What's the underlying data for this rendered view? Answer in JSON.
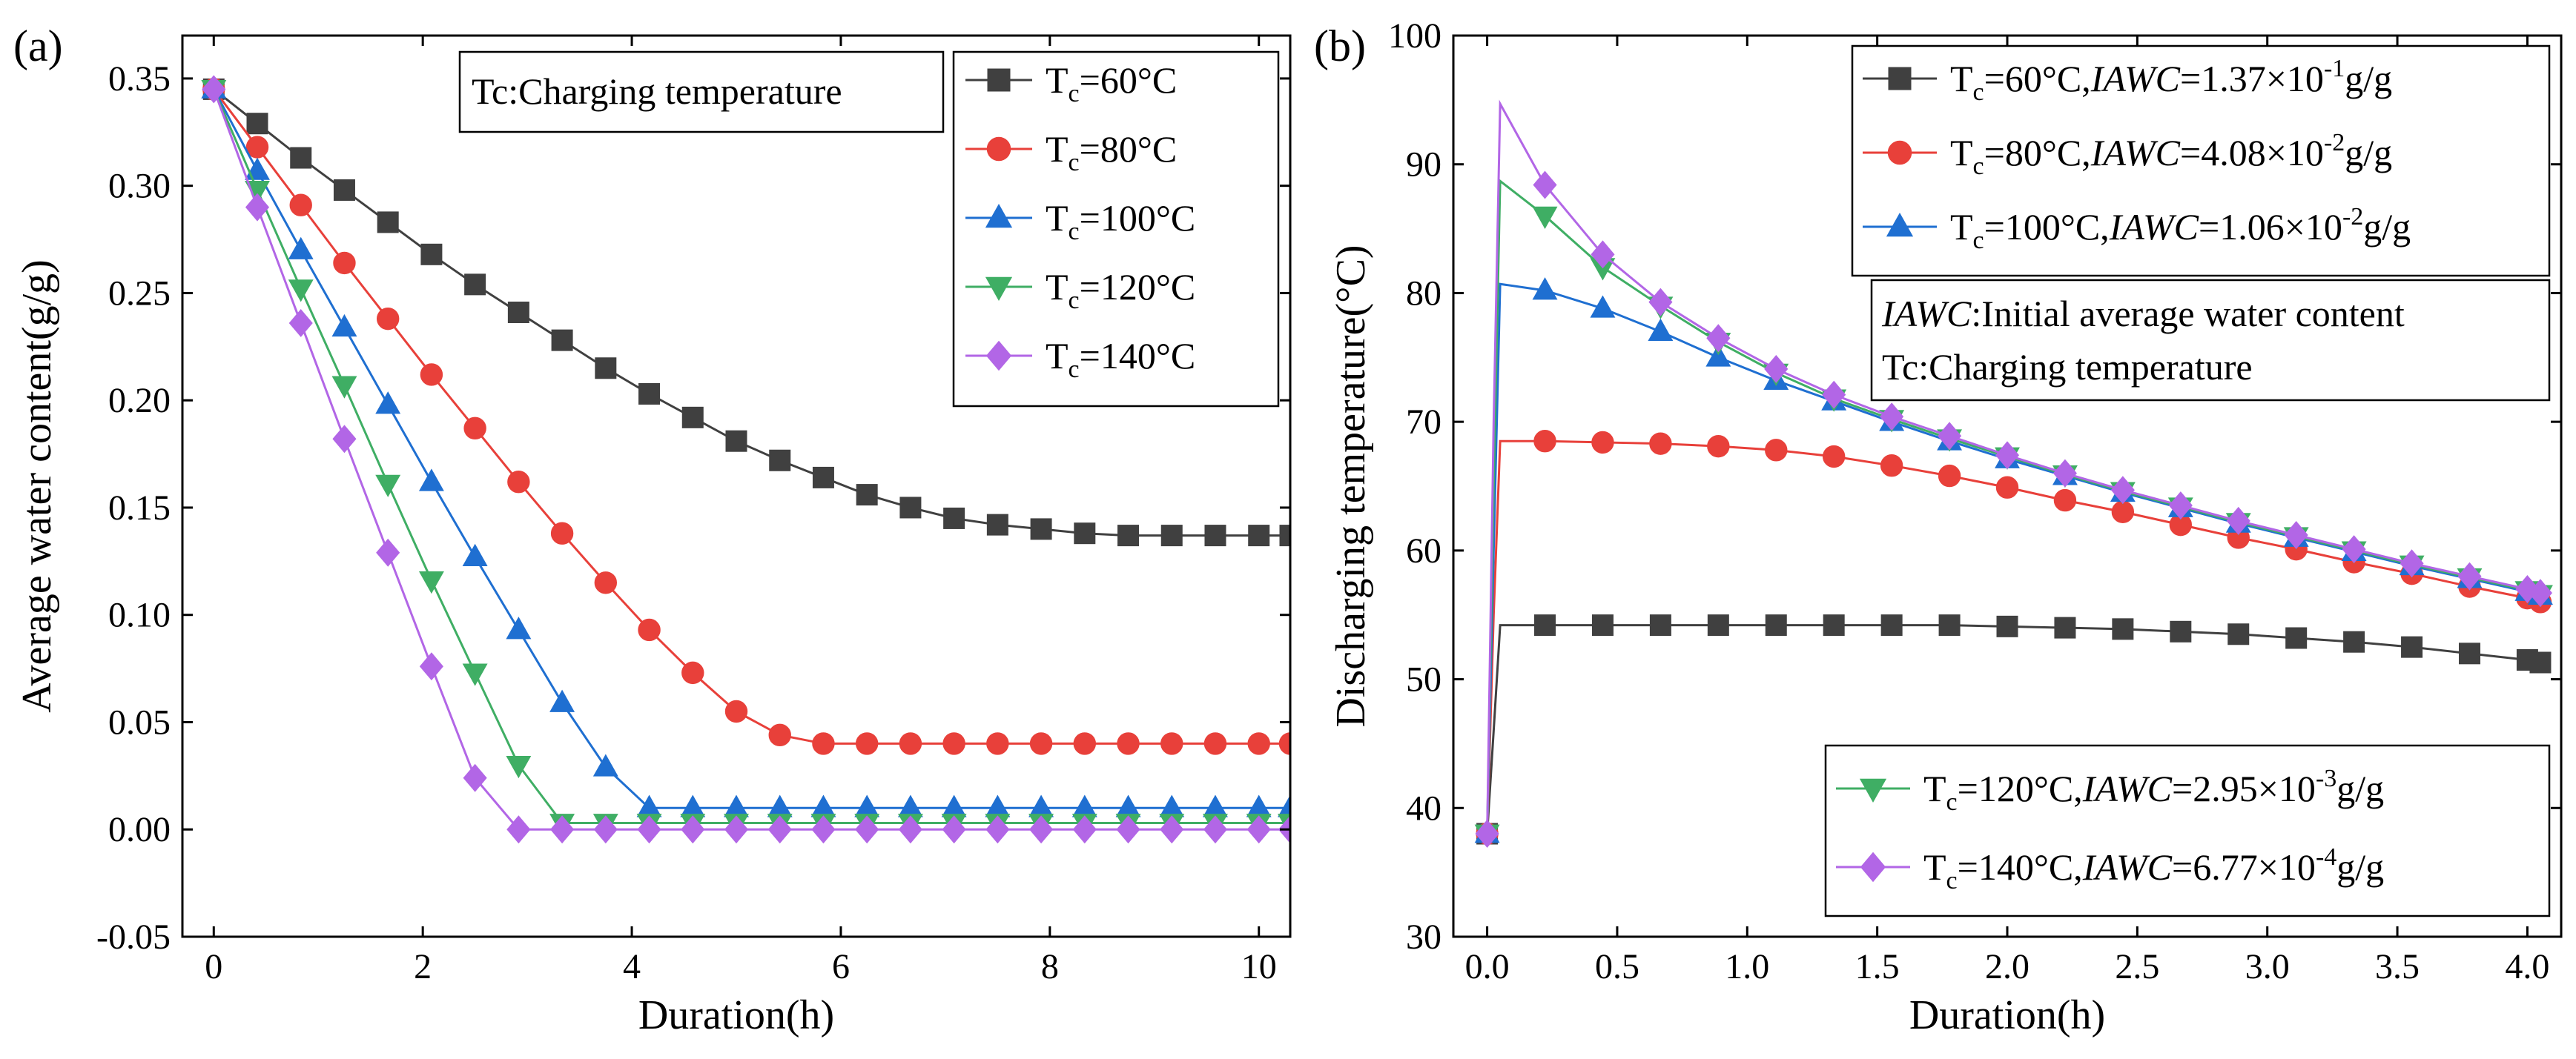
{
  "figure": {
    "panel_a": "(a)",
    "panel_b": "(b)"
  },
  "chart_data": [
    {
      "id": "a",
      "type": "line",
      "panel_label": "(a)",
      "xlabel": "Duration(h)",
      "ylabel": "Average water content(g/g)",
      "xlim": [
        -0.3,
        10.3
      ],
      "ylim": [
        -0.05,
        0.37
      ],
      "xticks": [
        0,
        2,
        4,
        6,
        8,
        10
      ],
      "xtick_labels": [
        "0",
        "2",
        "4",
        "6",
        "8",
        "10"
      ],
      "yticks": [
        -0.05,
        0,
        0.05,
        0.1,
        0.15,
        0.2,
        0.25,
        0.3,
        0.35
      ],
      "ytick_labels": [
        "-0.05",
        "0.00",
        "0.05",
        "0.10",
        "0.15",
        "0.20",
        "0.25",
        "0.30",
        "0.35"
      ],
      "note": "Tc:Charging temperature",
      "series": [
        {
          "name": "Tc=60°C",
          "label_main": "T",
          "label_sub": "c",
          "label_rest": "=60°C",
          "color": "#404040",
          "marker": "square",
          "x": [
            0,
            0.4167,
            0.8333,
            1.25,
            1.6667,
            2.0833,
            2.5,
            2.9167,
            3.3333,
            3.75,
            4.1667,
            4.5833,
            5,
            5.4167,
            5.8333,
            6.25,
            6.6667,
            7.0833,
            7.5,
            7.9167,
            8.3333,
            8.75,
            9.1667,
            9.5833,
            10,
            10.3
          ],
          "y": [
            0.345,
            0.329,
            0.313,
            0.298,
            0.283,
            0.268,
            0.254,
            0.241,
            0.228,
            0.215,
            0.203,
            0.192,
            0.181,
            0.172,
            0.164,
            0.156,
            0.15,
            0.145,
            0.142,
            0.14,
            0.138,
            0.137,
            0.137,
            0.137,
            0.137,
            0.137
          ]
        },
        {
          "name": "Tc=80°C",
          "label_main": "T",
          "label_sub": "c",
          "label_rest": "=80°C",
          "color": "#e8403a",
          "marker": "circle",
          "x": [
            0,
            0.4167,
            0.8333,
            1.25,
            1.6667,
            2.0833,
            2.5,
            2.9167,
            3.3333,
            3.75,
            4.1667,
            4.5833,
            5,
            5.4167,
            5.8333,
            6.25,
            6.6667,
            7.0833,
            7.5,
            7.9167,
            8.3333,
            8.75,
            9.1667,
            9.5833,
            10,
            10.3
          ],
          "y": [
            0.345,
            0.318,
            0.291,
            0.264,
            0.238,
            0.212,
            0.187,
            0.162,
            0.138,
            0.115,
            0.093,
            0.073,
            0.055,
            0.044,
            0.04,
            0.04,
            0.04,
            0.04,
            0.04,
            0.04,
            0.04,
            0.04,
            0.04,
            0.04,
            0.04,
            0.04
          ]
        },
        {
          "name": "Tc=100°C",
          "label_main": "T",
          "label_sub": "c",
          "label_rest": "=100°C",
          "color": "#1f6fd1",
          "marker": "triangle-up",
          "x": [
            0,
            0.4167,
            0.8333,
            1.25,
            1.6667,
            2.0833,
            2.5,
            2.9167,
            3.3333,
            3.75,
            4.1667,
            4.5833,
            5,
            5.4167,
            5.8333,
            6.25,
            6.6667,
            7.0833,
            7.5,
            7.9167,
            8.3333,
            8.75,
            9.1667,
            9.5833,
            10,
            10.3
          ],
          "y": [
            0.345,
            0.307,
            0.27,
            0.234,
            0.198,
            0.162,
            0.127,
            0.093,
            0.059,
            0.029,
            0.01,
            0.01,
            0.01,
            0.01,
            0.01,
            0.01,
            0.01,
            0.01,
            0.01,
            0.01,
            0.01,
            0.01,
            0.01,
            0.01,
            0.01,
            0.01
          ]
        },
        {
          "name": "Tc=120°C",
          "label_main": "T",
          "label_sub": "c",
          "label_rest": "=120°C",
          "color": "#3fae64",
          "marker": "triangle-down",
          "x": [
            0,
            0.4167,
            0.8333,
            1.25,
            1.6667,
            2.0833,
            2.5,
            2.9167,
            3.3333,
            3.75,
            4.1667,
            4.5833,
            5,
            5.4167,
            5.8333,
            6.25,
            6.6667,
            7.0833,
            7.5,
            7.9167,
            8.3333,
            8.75,
            9.1667,
            9.5833,
            10,
            10.3
          ],
          "y": [
            0.345,
            0.298,
            0.252,
            0.207,
            0.161,
            0.116,
            0.073,
            0.03,
            0.003,
            0.003,
            0.003,
            0.003,
            0.003,
            0.003,
            0.003,
            0.003,
            0.003,
            0.003,
            0.003,
            0.003,
            0.003,
            0.003,
            0.003,
            0.003,
            0.003,
            0.003
          ]
        },
        {
          "name": "Tc=140°C",
          "label_main": "T",
          "label_sub": "c",
          "label_rest": "=140°C",
          "color": "#b266e6",
          "marker": "diamond",
          "x": [
            0,
            0.4167,
            0.8333,
            1.25,
            1.6667,
            2.0833,
            2.5,
            2.9167,
            3.3333,
            3.75,
            4.1667,
            4.5833,
            5,
            5.4167,
            5.8333,
            6.25,
            6.6667,
            7.0833,
            7.5,
            7.9167,
            8.3333,
            8.75,
            9.1667,
            9.5833,
            10,
            10.3
          ],
          "y": [
            0.345,
            0.29,
            0.236,
            0.182,
            0.129,
            0.076,
            0.024,
            0.0,
            0.0,
            0.0,
            0.0,
            0.0,
            0.0,
            0.0,
            0.0,
            0.0,
            0.0,
            0.0,
            0.0,
            0.0,
            0.0,
            0.0,
            0.0,
            0.0,
            0.0,
            0.0
          ]
        }
      ]
    },
    {
      "id": "b",
      "type": "line",
      "panel_label": "(b)",
      "xlabel": "Duration(h)",
      "ylabel": "Discharging temperature(°C)",
      "xlim": [
        -0.13,
        4.13
      ],
      "ylim": [
        30,
        100
      ],
      "xticks": [
        0,
        0.5,
        1,
        1.5,
        2,
        2.5,
        3,
        3.5,
        4
      ],
      "xtick_labels": [
        "0.0",
        "0.5",
        "1.0",
        "1.5",
        "2.0",
        "2.5",
        "3.0",
        "3.5",
        "4.0"
      ],
      "yticks": [
        30,
        40,
        50,
        60,
        70,
        80,
        90,
        100
      ],
      "ytick_labels": [
        "30",
        "40",
        "50",
        "60",
        "70",
        "80",
        "90",
        "100"
      ],
      "note_line1_italic": "IAWC",
      "note_line1_rest": ":Initial average water content",
      "note_line2": "Tc:Charging temperature",
      "series": [
        {
          "name": "Tc=60°C,IAWC=1.37×10-1g/g",
          "t": "T",
          "c": "c",
          "eq": "=60°C,",
          "iawc": "IAWC",
          "val": "=1.37×10",
          "exp": "-1",
          "unit": "g/g",
          "color": "#404040",
          "marker": "square",
          "x": [
            0,
            0.025,
            0.05,
            0.2222,
            0.4444,
            0.6667,
            0.8889,
            1.1111,
            1.3333,
            1.5556,
            1.7778,
            2.0,
            2.2222,
            2.4444,
            2.6667,
            2.8889,
            3.1111,
            3.3333,
            3.5556,
            3.7778,
            4.0,
            4.05
          ],
          "y": [
            38,
            46,
            54.2,
            54.2,
            54.2,
            54.2,
            54.2,
            54.2,
            54.2,
            54.2,
            54.2,
            54.1,
            54.0,
            53.9,
            53.7,
            53.5,
            53.2,
            52.9,
            52.5,
            52.0,
            51.5,
            51.3
          ]
        },
        {
          "name": "Tc=80°C,IAWC=4.08×10-2g/g",
          "t": "T",
          "c": "c",
          "eq": "=80°C,",
          "iawc": "IAWC",
          "val": "=4.08×10",
          "exp": "-2",
          "unit": "g/g",
          "color": "#e8403a",
          "marker": "circle",
          "x": [
            0,
            0.025,
            0.05,
            0.2222,
            0.4444,
            0.6667,
            0.8889,
            1.1111,
            1.3333,
            1.5556,
            1.7778,
            2.0,
            2.2222,
            2.4444,
            2.6667,
            2.8889,
            3.1111,
            3.3333,
            3.5556,
            3.7778,
            4.0,
            4.05
          ],
          "y": [
            38,
            55,
            68.5,
            68.5,
            68.4,
            68.3,
            68.1,
            67.8,
            67.3,
            66.6,
            65.8,
            64.9,
            63.9,
            63.0,
            62.0,
            61.0,
            60.1,
            59.1,
            58.2,
            57.2,
            56.3,
            56.0
          ]
        },
        {
          "name": "Tc=100°C,IAWC=1.06×10-2g/g",
          "t": "T",
          "c": "c",
          "eq": "=100°C,",
          "iawc": "IAWC",
          "val": "=1.06×10",
          "exp": "-2",
          "unit": "g/g",
          "color": "#1f6fd1",
          "marker": "triangle-up",
          "x": [
            0,
            0.025,
            0.05,
            0.2222,
            0.4444,
            0.6667,
            0.8889,
            1.1111,
            1.3333,
            1.5556,
            1.7778,
            2.0,
            2.2222,
            2.4444,
            2.6667,
            2.8889,
            3.1111,
            3.3333,
            3.5556,
            3.7778,
            4.0,
            4.05
          ],
          "y": [
            38,
            60,
            80.7,
            80.2,
            78.8,
            77.0,
            75.0,
            73.2,
            71.6,
            70.0,
            68.5,
            67.1,
            65.8,
            64.5,
            63.3,
            62.1,
            61.0,
            59.9,
            58.8,
            57.8,
            56.8,
            56.5
          ]
        },
        {
          "name": "Tc=120°C,IAWC=2.95×10-3g/g",
          "t": "T",
          "c": "c",
          "eq": "=120°C,",
          "iawc": "IAWC",
          "val": "=2.95×10",
          "exp": "-3",
          "unit": "g/g",
          "color": "#3fae64",
          "marker": "triangle-down",
          "x": [
            0,
            0.025,
            0.05,
            0.2222,
            0.4444,
            0.6667,
            0.8889,
            1.1111,
            1.3333,
            1.5556,
            1.7778,
            2.0,
            2.2222,
            2.4444,
            2.6667,
            2.8889,
            3.1111,
            3.3333,
            3.5556,
            3.7778,
            4.0,
            4.05
          ],
          "y": [
            38,
            65,
            88.7,
            86.0,
            82.0,
            79.0,
            76.2,
            73.8,
            71.8,
            70.2,
            68.7,
            67.3,
            65.9,
            64.6,
            63.4,
            62.2,
            61.1,
            60.0,
            58.9,
            57.9,
            56.9,
            56.6
          ]
        },
        {
          "name": "Tc=140°C,IAWC=6.77×10-4g/g",
          "t": "T",
          "c": "c",
          "eq": "=140°C,",
          "iawc": "IAWC",
          "val": "=6.77×10",
          "exp": "-4",
          "unit": "g/g",
          "color": "#b266e6",
          "marker": "diamond",
          "x": [
            0,
            0.025,
            0.05,
            0.2222,
            0.4444,
            0.6667,
            0.8889,
            1.1111,
            1.3333,
            1.5556,
            1.7778,
            2.0,
            2.2222,
            2.4444,
            2.6667,
            2.8889,
            3.1111,
            3.3333,
            3.5556,
            3.7778,
            4.0,
            4.05
          ],
          "y": [
            38,
            70,
            94.7,
            88.4,
            83.0,
            79.3,
            76.5,
            74.1,
            72.1,
            70.4,
            68.9,
            67.4,
            66.0,
            64.7,
            63.5,
            62.3,
            61.2,
            60.1,
            59.0,
            58.0,
            57.0,
            56.7
          ]
        }
      ]
    }
  ]
}
